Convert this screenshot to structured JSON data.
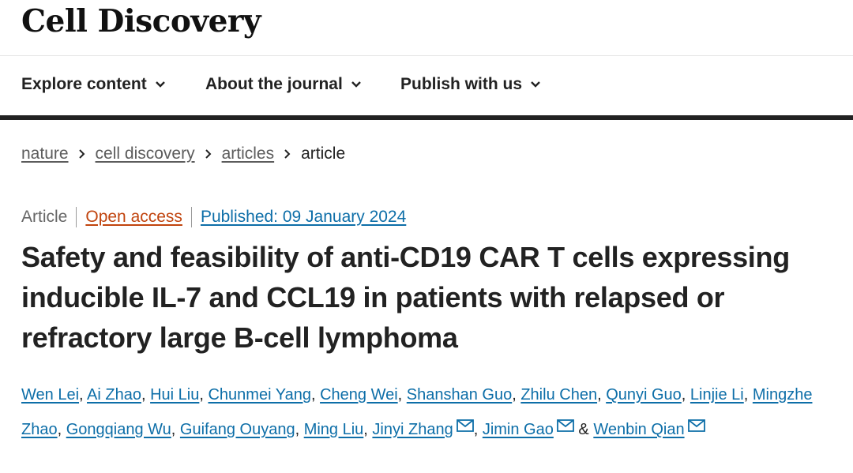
{
  "journal": {
    "name": "Cell Discovery"
  },
  "nav": {
    "items": [
      {
        "label": "Explore content",
        "icon": "chevron-down-icon"
      },
      {
        "label": "About the journal",
        "icon": "chevron-down-icon"
      },
      {
        "label": "Publish with us",
        "icon": "chevron-down-icon"
      }
    ]
  },
  "breadcrumb": {
    "items": [
      "nature",
      "cell discovery",
      "articles",
      "article"
    ]
  },
  "article": {
    "type": "Article",
    "access": "Open access",
    "published": "Published: 09 January 2024",
    "title": "Safety and feasibility of anti-CD19 CAR T cells expressing inducible IL-7 and CCL19 in patients with relapsed or refractory large B-cell lymphoma"
  },
  "authors": {
    "list": [
      "Wen Lei",
      "Ai Zhao",
      "Hui Liu",
      "Chunmei Yang",
      "Cheng Wei",
      "Shanshan Guo",
      "Zhilu Chen",
      "Qunyi Guo",
      "Linjie Li",
      "Mingzhe Zhao",
      "Gongqiang Wu",
      "Guifang Ouyang",
      "Ming Liu",
      "Jinyi Zhang",
      "Jimin Gao",
      "Wenbin Qian"
    ],
    "separator": ", ",
    "conjunction": " & ",
    "corresponding_icon": "mail-icon"
  },
  "colors": {
    "link_blue": "#0d6ea8",
    "open_access_orange": "#c1440e",
    "header_rule": "#222222"
  }
}
